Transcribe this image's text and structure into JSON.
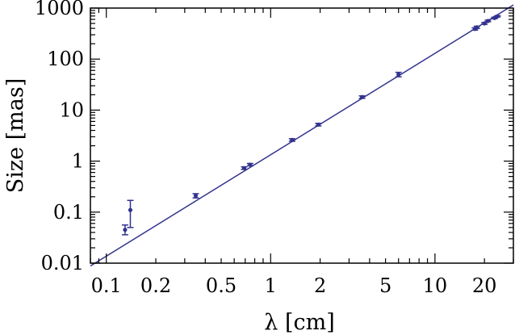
{
  "chart_data": {
    "type": "scatter",
    "xscale": "log",
    "yscale": "log",
    "xlabel": "λ [cm]",
    "ylabel": "Size [mas]",
    "xlim": [
      0.08,
      30
    ],
    "ylim": [
      0.01,
      1000
    ],
    "xticks": [
      {
        "value": 0.1,
        "label": "0.1"
      },
      {
        "value": 0.2,
        "label": "0.2"
      },
      {
        "value": 0.5,
        "label": "0.5"
      },
      {
        "value": 1,
        "label": "1"
      },
      {
        "value": 2,
        "label": "2"
      },
      {
        "value": 5,
        "label": "5"
      },
      {
        "value": 10,
        "label": "10"
      },
      {
        "value": 20,
        "label": "20"
      }
    ],
    "yticks": [
      {
        "value": 0.01,
        "label": "0.01"
      },
      {
        "value": 0.1,
        "label": "0.1"
      },
      {
        "value": 1,
        "label": "1"
      },
      {
        "value": 10,
        "label": "10"
      },
      {
        "value": 100,
        "label": "100"
      },
      {
        "value": 1000,
        "label": "1000"
      }
    ],
    "grid": false,
    "color": "#33338f",
    "points": [
      {
        "x": 0.13,
        "y": 0.045,
        "ylo": 0.036,
        "yhi": 0.056
      },
      {
        "x": 0.14,
        "y": 0.11,
        "ylo": 0.05,
        "yhi": 0.17
      },
      {
        "x": 0.35,
        "y": 0.21,
        "ylo": 0.19,
        "yhi": 0.23
      },
      {
        "x": 0.69,
        "y": 0.73,
        "ylo": 0.69,
        "yhi": 0.77
      },
      {
        "x": 0.75,
        "y": 0.85,
        "ylo": 0.81,
        "yhi": 0.9
      },
      {
        "x": 1.35,
        "y": 2.6,
        "ylo": 2.45,
        "yhi": 2.75
      },
      {
        "x": 1.95,
        "y": 5.2,
        "ylo": 4.9,
        "yhi": 5.5
      },
      {
        "x": 3.6,
        "y": 18,
        "ylo": 17,
        "yhi": 19
      },
      {
        "x": 6.0,
        "y": 50,
        "ylo": 45,
        "yhi": 55
      },
      {
        "x": 17.5,
        "y": 390,
        "ylo": 370,
        "yhi": 410
      },
      {
        "x": 18.0,
        "y": 420,
        "ylo": 400,
        "yhi": 440
      },
      {
        "x": 20.0,
        "y": 500,
        "ylo": 480,
        "yhi": 520
      },
      {
        "x": 21.0,
        "y": 560,
        "ylo": 540,
        "yhi": 580
      },
      {
        "x": 23.0,
        "y": 640,
        "ylo": 620,
        "yhi": 660
      },
      {
        "x": 24.0,
        "y": 690,
        "ylo": 670,
        "yhi": 710
      }
    ],
    "fit_line": [
      {
        "x": 0.08,
        "y": 0.0088
      },
      {
        "x": 30,
        "y": 1150
      }
    ]
  }
}
